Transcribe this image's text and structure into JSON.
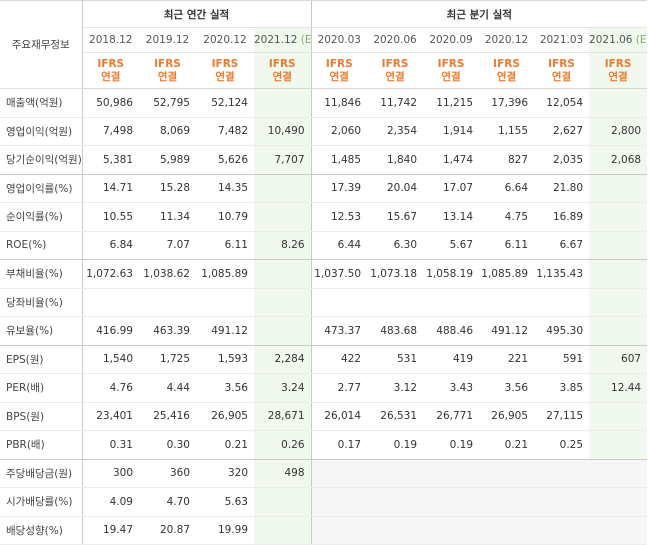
{
  "header": {
    "corner_label": "주요재무정보",
    "annual_title": "최근 연간 실적",
    "quarter_title": "최근 분기 실적",
    "annual_periods": [
      "2018.12",
      "2019.12",
      "2020.12",
      "2021.12"
    ],
    "quarter_periods": [
      "2020.03",
      "2020.06",
      "2020.09",
      "2020.12",
      "2021.03",
      "2021.06"
    ],
    "estimate_mark": "(E)",
    "ifrs_top": "IFRS",
    "ifrs_bottom": "연결"
  },
  "colors": {
    "ifrs_orange": "#ef7a30",
    "estimate_green_bg": "#f1f8ee",
    "estimate_mark_green": "#7fae6d",
    "blank_gray_bg": "#f6f6f6"
  },
  "rows": [
    {
      "label": "매출액(억원)",
      "values": [
        "50,986",
        "52,795",
        "52,124",
        "",
        "11,846",
        "11,742",
        "11,215",
        "17,396",
        "12,054",
        ""
      ]
    },
    {
      "label": "영업이익(억원)",
      "values": [
        "7,498",
        "8,069",
        "7,482",
        "10,490",
        "2,060",
        "2,354",
        "1,914",
        "1,155",
        "2,627",
        "2,800"
      ]
    },
    {
      "label": "당기순이익(억원)",
      "values": [
        "5,381",
        "5,989",
        "5,626",
        "7,707",
        "1,485",
        "1,840",
        "1,474",
        "827",
        "2,035",
        "2,068"
      ]
    },
    {
      "label": "영업이익률(%)",
      "values": [
        "14.71",
        "15.28",
        "14.35",
        "",
        "17.39",
        "20.04",
        "17.07",
        "6.64",
        "21.80",
        ""
      ]
    },
    {
      "label": "순이익률(%)",
      "values": [
        "10.55",
        "11.34",
        "10.79",
        "",
        "12.53",
        "15.67",
        "13.14",
        "4.75",
        "16.89",
        ""
      ]
    },
    {
      "label": "ROE(%)",
      "values": [
        "6.84",
        "7.07",
        "6.11",
        "8.26",
        "6.44",
        "6.30",
        "5.67",
        "6.11",
        "6.67",
        ""
      ]
    },
    {
      "label": "부채비율(%)",
      "values": [
        "1,072.63",
        "1,038.62",
        "1,085.89",
        "",
        "1,037.50",
        "1,073.18",
        "1,058.19",
        "1,085.89",
        "1,135.43",
        ""
      ]
    },
    {
      "label": "당좌비율(%)",
      "values": [
        "",
        "",
        "",
        "",
        "",
        "",
        "",
        "",
        "",
        ""
      ]
    },
    {
      "label": "유보율(%)",
      "values": [
        "416.99",
        "463.39",
        "491.12",
        "",
        "473.37",
        "483.68",
        "488.46",
        "491.12",
        "495.30",
        ""
      ]
    },
    {
      "label": "EPS(원)",
      "values": [
        "1,540",
        "1,725",
        "1,593",
        "2,284",
        "422",
        "531",
        "419",
        "221",
        "591",
        "607"
      ]
    },
    {
      "label": "PER(배)",
      "values": [
        "4.76",
        "4.44",
        "3.56",
        "3.24",
        "2.77",
        "3.12",
        "3.43",
        "3.56",
        "3.85",
        "12.44"
      ]
    },
    {
      "label": "BPS(원)",
      "values": [
        "23,401",
        "25,416",
        "26,905",
        "28,671",
        "26,014",
        "26,531",
        "26,771",
        "26,905",
        "27,115",
        ""
      ]
    },
    {
      "label": "PBR(배)",
      "values": [
        "0.31",
        "0.30",
        "0.21",
        "0.26",
        "0.17",
        "0.19",
        "0.19",
        "0.21",
        "0.25",
        ""
      ]
    },
    {
      "label": "주당배당금(원)",
      "values": [
        "300",
        "360",
        "320",
        "498",
        "",
        "",
        "",
        "",
        "",
        ""
      ]
    },
    {
      "label": "시가배당률(%)",
      "values": [
        "4.09",
        "4.70",
        "5.63",
        "",
        "",
        "",
        "",
        "",
        "",
        ""
      ]
    },
    {
      "label": "배당성향(%)",
      "values": [
        "19.47",
        "20.87",
        "19.99",
        "",
        "",
        "",
        "",
        "",
        "",
        ""
      ]
    }
  ]
}
